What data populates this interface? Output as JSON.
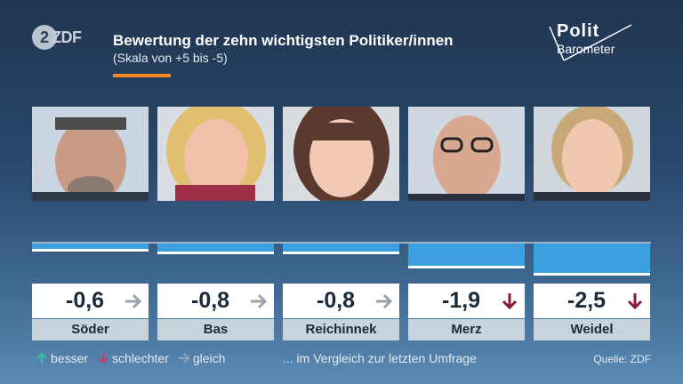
{
  "header": {
    "logo_zdf": "ZDF",
    "title": "Bewertung der zehn wichtigsten Politiker/innen",
    "subtitle": "(Skala von +5 bis -5)",
    "polit_line1": "Polit",
    "polit_line2": "Barometer"
  },
  "chart_data": {
    "type": "bar",
    "title": "Bewertung der zehn wichtigsten Politiker/innen",
    "subtitle": "(Skala von +5 bis -5)",
    "categories": [
      "Söder",
      "Bas",
      "Reichinnek",
      "Merz",
      "Weidel"
    ],
    "values": [
      -0.6,
      -0.8,
      -0.8,
      -1.9,
      -2.5
    ],
    "value_labels": [
      "-0,6",
      "-0,8",
      "-0,8",
      "-1,9",
      "-2,5"
    ],
    "trends": [
      "gleich",
      "gleich",
      "gleich",
      "schlechter",
      "schlechter"
    ],
    "ylim": [
      -5,
      5
    ],
    "grid": false
  },
  "legend": {
    "better": "besser",
    "worse": "schlechter",
    "same": "gleich",
    "compare_note": "... im Vergleich zur letzten Umfrage"
  },
  "source": "Quelle: ZDF",
  "colors": {
    "bar": "#3b9fe0",
    "accent": "#f08a24",
    "better": "#3bbfa0",
    "worse": "#8a1a3c",
    "same": "#9aa3ad"
  },
  "icons": [
    "person-photo-soeder",
    "person-photo-bas",
    "person-photo-reichinnek",
    "person-photo-merz",
    "person-photo-weidel",
    "arrow-right-icon",
    "arrow-down-icon",
    "arrow-up-icon"
  ]
}
